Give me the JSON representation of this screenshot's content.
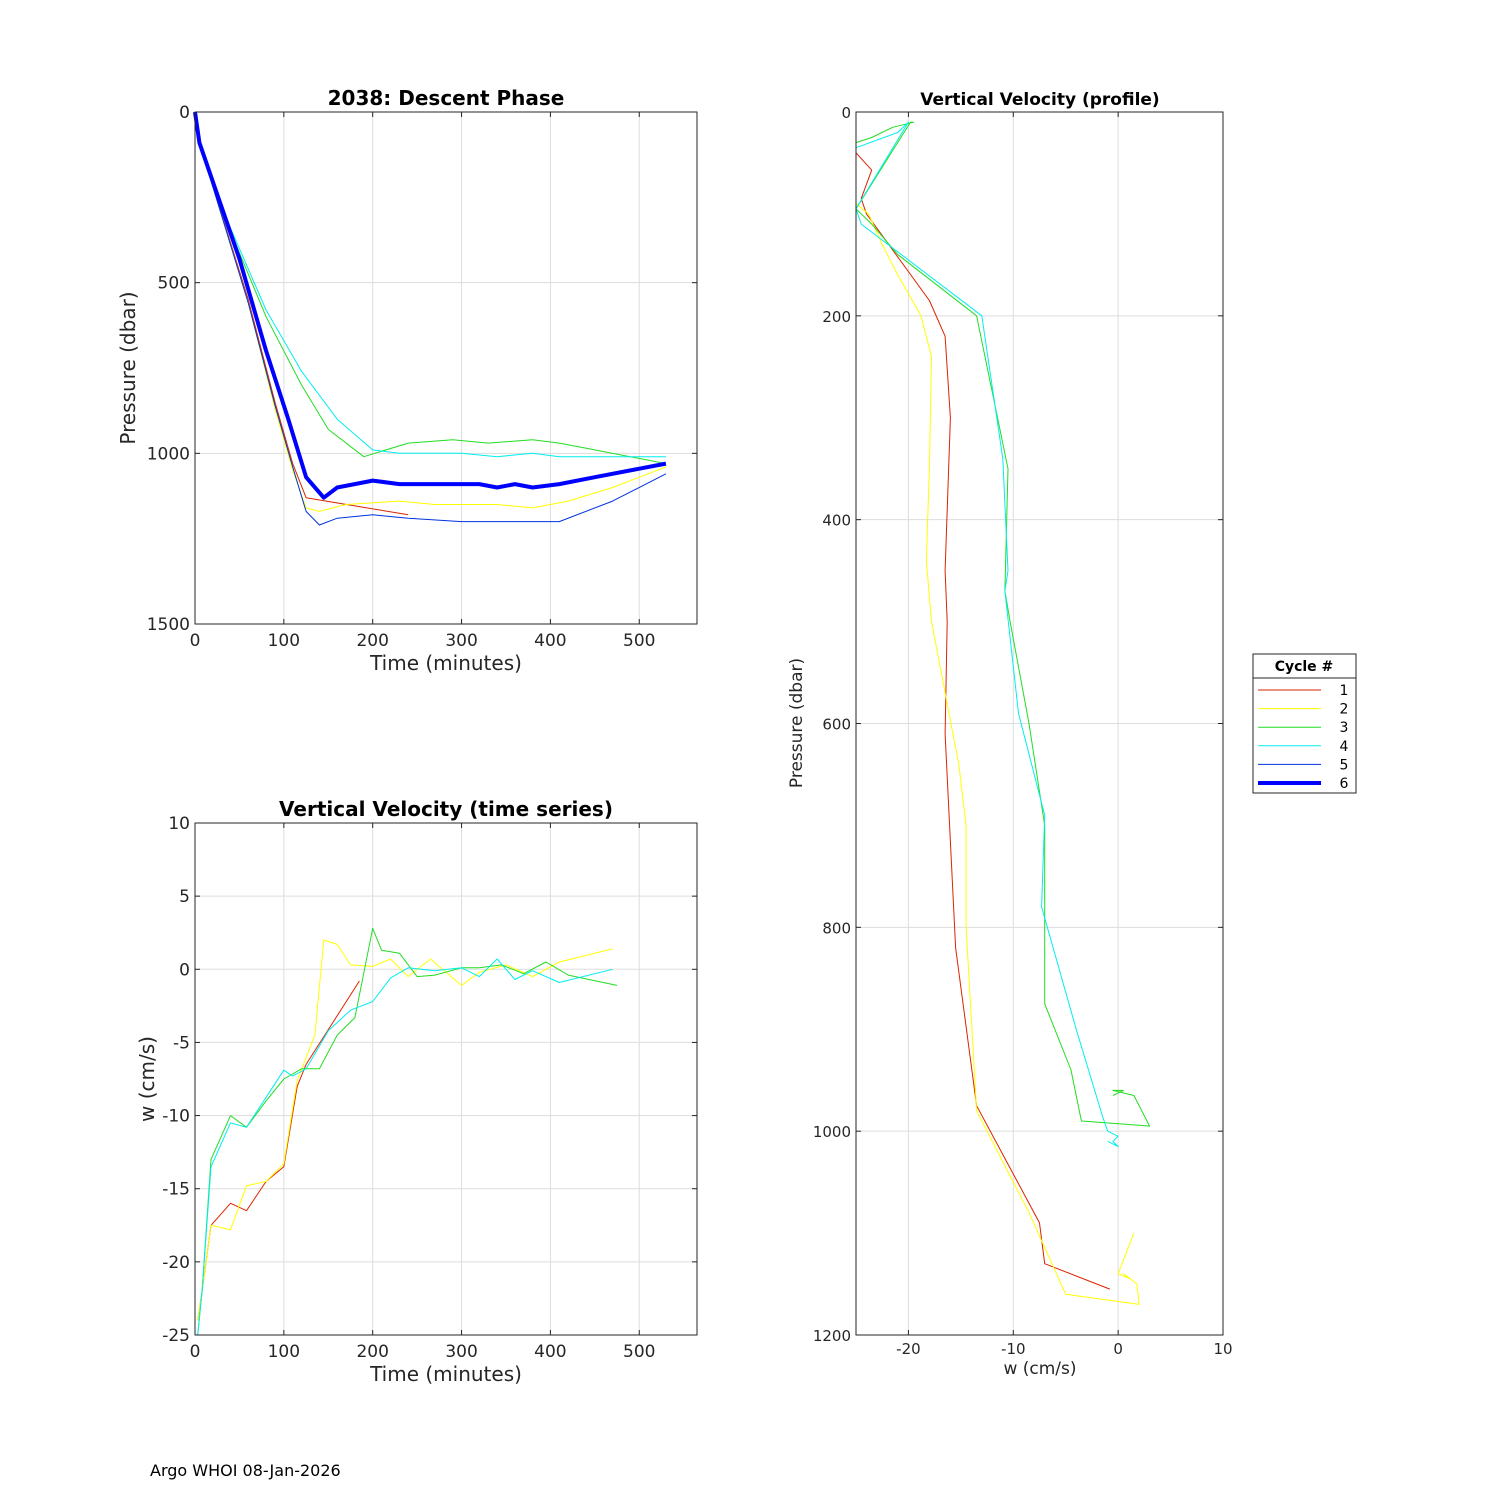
{
  "footer": "Argo WHOI 08-Jan-2026",
  "legend": {
    "title": "Cycle #",
    "entries": [
      "1",
      "2",
      "3",
      "4",
      "5",
      "6"
    ]
  },
  "colors": {
    "1": "#dd2200",
    "2": "#ffff00",
    "3": "#22dd22",
    "4": "#00eeee",
    "5": "#0033dd",
    "6": "#0000ff"
  },
  "chart_data": [
    {
      "id": "descent",
      "type": "line",
      "title": "2038: Descent Phase",
      "xlabel": "Time (minutes)",
      "ylabel": "Pressure (dbar)",
      "xlim": [
        0,
        565
      ],
      "ylim": [
        0,
        1500
      ],
      "y_reversed": true,
      "xticks": [
        0,
        100,
        200,
        300,
        400,
        500
      ],
      "yticks": [
        0,
        500,
        1000,
        1500
      ],
      "grid": true,
      "series": [
        {
          "cycle": "1",
          "x": [
            0,
            5,
            60,
            90,
            110,
            125,
            240
          ],
          "y": [
            0,
            90,
            550,
            850,
            1030,
            1130,
            1180
          ]
        },
        {
          "cycle": "2",
          "x": [
            0,
            5,
            60,
            90,
            110,
            125,
            140,
            170,
            230,
            270,
            340,
            380,
            420,
            470,
            530
          ],
          "y": [
            0,
            90,
            560,
            870,
            1050,
            1160,
            1170,
            1150,
            1140,
            1150,
            1150,
            1160,
            1140,
            1100,
            1040
          ]
        },
        {
          "cycle": "3",
          "x": [
            0,
            5,
            40,
            80,
            120,
            150,
            190,
            240,
            290,
            330,
            380,
            410,
            450,
            530
          ],
          "y": [
            0,
            90,
            350,
            600,
            800,
            930,
            1010,
            970,
            960,
            970,
            960,
            970,
            990,
            1030
          ]
        },
        {
          "cycle": "4",
          "x": [
            0,
            5,
            40,
            80,
            120,
            160,
            200,
            230,
            300,
            340,
            380,
            410,
            450,
            530
          ],
          "y": [
            0,
            90,
            340,
            580,
            760,
            900,
            990,
            1000,
            1000,
            1010,
            1000,
            1010,
            1010,
            1010
          ]
        },
        {
          "cycle": "5",
          "x": [
            0,
            5,
            60,
            90,
            110,
            125,
            140,
            160,
            200,
            240,
            300,
            340,
            380,
            410,
            470,
            530
          ],
          "y": [
            0,
            90,
            560,
            860,
            1040,
            1170,
            1210,
            1190,
            1180,
            1190,
            1200,
            1200,
            1200,
            1200,
            1140,
            1060
          ]
        },
        {
          "cycle": "6",
          "x": [
            0,
            5,
            50,
            80,
            105,
            125,
            145,
            160,
            200,
            230,
            280,
            320,
            340,
            360,
            380,
            410,
            450,
            530
          ],
          "y": [
            0,
            90,
            430,
            700,
            900,
            1070,
            1130,
            1100,
            1080,
            1090,
            1090,
            1090,
            1100,
            1090,
            1100,
            1090,
            1070,
            1030
          ]
        }
      ]
    },
    {
      "id": "ts",
      "type": "line",
      "title": "Vertical Velocity (time series)",
      "xlabel": "Time (minutes)",
      "ylabel": "w (cm/s)",
      "xlim": [
        0,
        565
      ],
      "ylim": [
        -25,
        10
      ],
      "xticks": [
        0,
        100,
        200,
        300,
        400,
        500
      ],
      "yticks": [
        -25,
        -20,
        -15,
        -10,
        -5,
        0,
        5,
        10
      ],
      "grid": true,
      "series": [
        {
          "cycle": "1",
          "x": [
            3,
            8,
            18,
            40,
            58,
            80,
            100,
            115,
            125,
            185
          ],
          "y": [
            -24,
            -22,
            -17.5,
            -16,
            -16.5,
            -14.5,
            -13.5,
            -8,
            -6.5,
            -0.8
          ]
        },
        {
          "cycle": "2",
          "x": [
            3,
            8,
            18,
            40,
            58,
            80,
            100,
            115,
            135,
            145,
            160,
            175,
            200,
            220,
            240,
            265,
            300,
            320,
            350,
            380,
            410,
            470
          ],
          "y": [
            -24,
            -22,
            -17.5,
            -17.8,
            -14.8,
            -14.5,
            -13.3,
            -7.6,
            -4.5,
            2,
            1.7,
            0.3,
            0.2,
            0.7,
            -0.5,
            0.7,
            -1.1,
            -0.2,
            0.3,
            -0.5,
            0.5,
            1.4
          ]
        },
        {
          "cycle": "3",
          "x": [
            3,
            8,
            18,
            40,
            58,
            80,
            100,
            120,
            140,
            160,
            180,
            200,
            210,
            230,
            250,
            270,
            300,
            320,
            345,
            370,
            395,
            420,
            475
          ],
          "y": [
            -25,
            -22,
            -13,
            -10,
            -10.8,
            -9,
            -7.5,
            -6.8,
            -6.8,
            -4.5,
            -3.3,
            2.8,
            1.3,
            1.1,
            -0.5,
            -0.4,
            0.1,
            0.1,
            0.3,
            -0.3,
            0.5,
            -0.4,
            -1.1
          ]
        },
        {
          "cycle": "4",
          "x": [
            3,
            8,
            18,
            40,
            58,
            100,
            110,
            125,
            150,
            175,
            200,
            220,
            240,
            270,
            300,
            320,
            340,
            360,
            380,
            410,
            470
          ],
          "y": [
            -25,
            -22,
            -13.5,
            -10.5,
            -10.8,
            -6.9,
            -7.3,
            -6.8,
            -4.2,
            -2.8,
            -2.2,
            -0.6,
            0.1,
            -0.1,
            0.1,
            -0.5,
            0.7,
            -0.7,
            -0.1,
            -0.9,
            0
          ]
        }
      ]
    },
    {
      "id": "profile",
      "type": "line",
      "title": "Vertical Velocity (profile)",
      "xlabel": "w (cm/s)",
      "ylabel": "Pressure (dbar)",
      "xlim": [
        -25,
        10
      ],
      "ylim": [
        0,
        1200
      ],
      "y_reversed": true,
      "xticks": [
        -20,
        -10,
        0,
        10
      ],
      "yticks": [
        0,
        200,
        400,
        600,
        800,
        1000,
        1200
      ],
      "grid": true,
      "series": [
        {
          "cycle": "1",
          "x": [
            -25,
            -23.5,
            -24.5,
            -24,
            -18,
            -16.5,
            -16,
            -16.5,
            -16.3,
            -16.5,
            -15.5,
            -13.5,
            -7.5,
            -7,
            -0.8
          ],
          "y": [
            40,
            57,
            85,
            100,
            185,
            220,
            300,
            450,
            500,
            610,
            820,
            975,
            1090,
            1130,
            1155
          ]
        },
        {
          "cycle": "2",
          "x": [
            -25,
            -23.8,
            -22.5,
            -21,
            -18.8,
            -17.8,
            -18,
            -18.3,
            -17.8,
            -15.2,
            -14.5,
            -14.5,
            -13.5,
            -8.5,
            -5,
            2,
            1.8,
            0.5,
            1.2,
            0,
            1.5
          ],
          "y": [
            90,
            100,
            130,
            160,
            200,
            240,
            350,
            440,
            500,
            640,
            700,
            800,
            980,
            1080,
            1160,
            1170,
            1150,
            1140,
            1145,
            1140,
            1100
          ]
        },
        {
          "cycle": "3",
          "x": [
            -25,
            -23.5,
            -21.5,
            -19.5,
            -19.8,
            -25,
            -23.5,
            -21,
            -13.5,
            -10.5,
            -10.8,
            -10.3,
            -8.5,
            -7,
            -7,
            -7,
            -4.5,
            -3.5,
            3,
            1.5,
            -0.5,
            0.5,
            -0.5
          ],
          "y": [
            30,
            25,
            15,
            10,
            10,
            95,
            110,
            140,
            200,
            350,
            470,
            500,
            600,
            700,
            780,
            875,
            940,
            990,
            995,
            965,
            960,
            960,
            965
          ]
        },
        {
          "cycle": "4",
          "x": [
            -25,
            -21,
            -20,
            -25,
            -24.5,
            -13,
            -11,
            -10.5,
            -10.8,
            -9.5,
            -7,
            -7.3,
            -4,
            -1.5,
            -1,
            0,
            -0.5,
            0,
            -1
          ],
          "y": [
            35,
            20,
            10,
            95,
            110,
            200,
            340,
            450,
            470,
            590,
            690,
            780,
            900,
            985,
            1000,
            1005,
            1010,
            1015,
            1010
          ]
        }
      ]
    }
  ]
}
